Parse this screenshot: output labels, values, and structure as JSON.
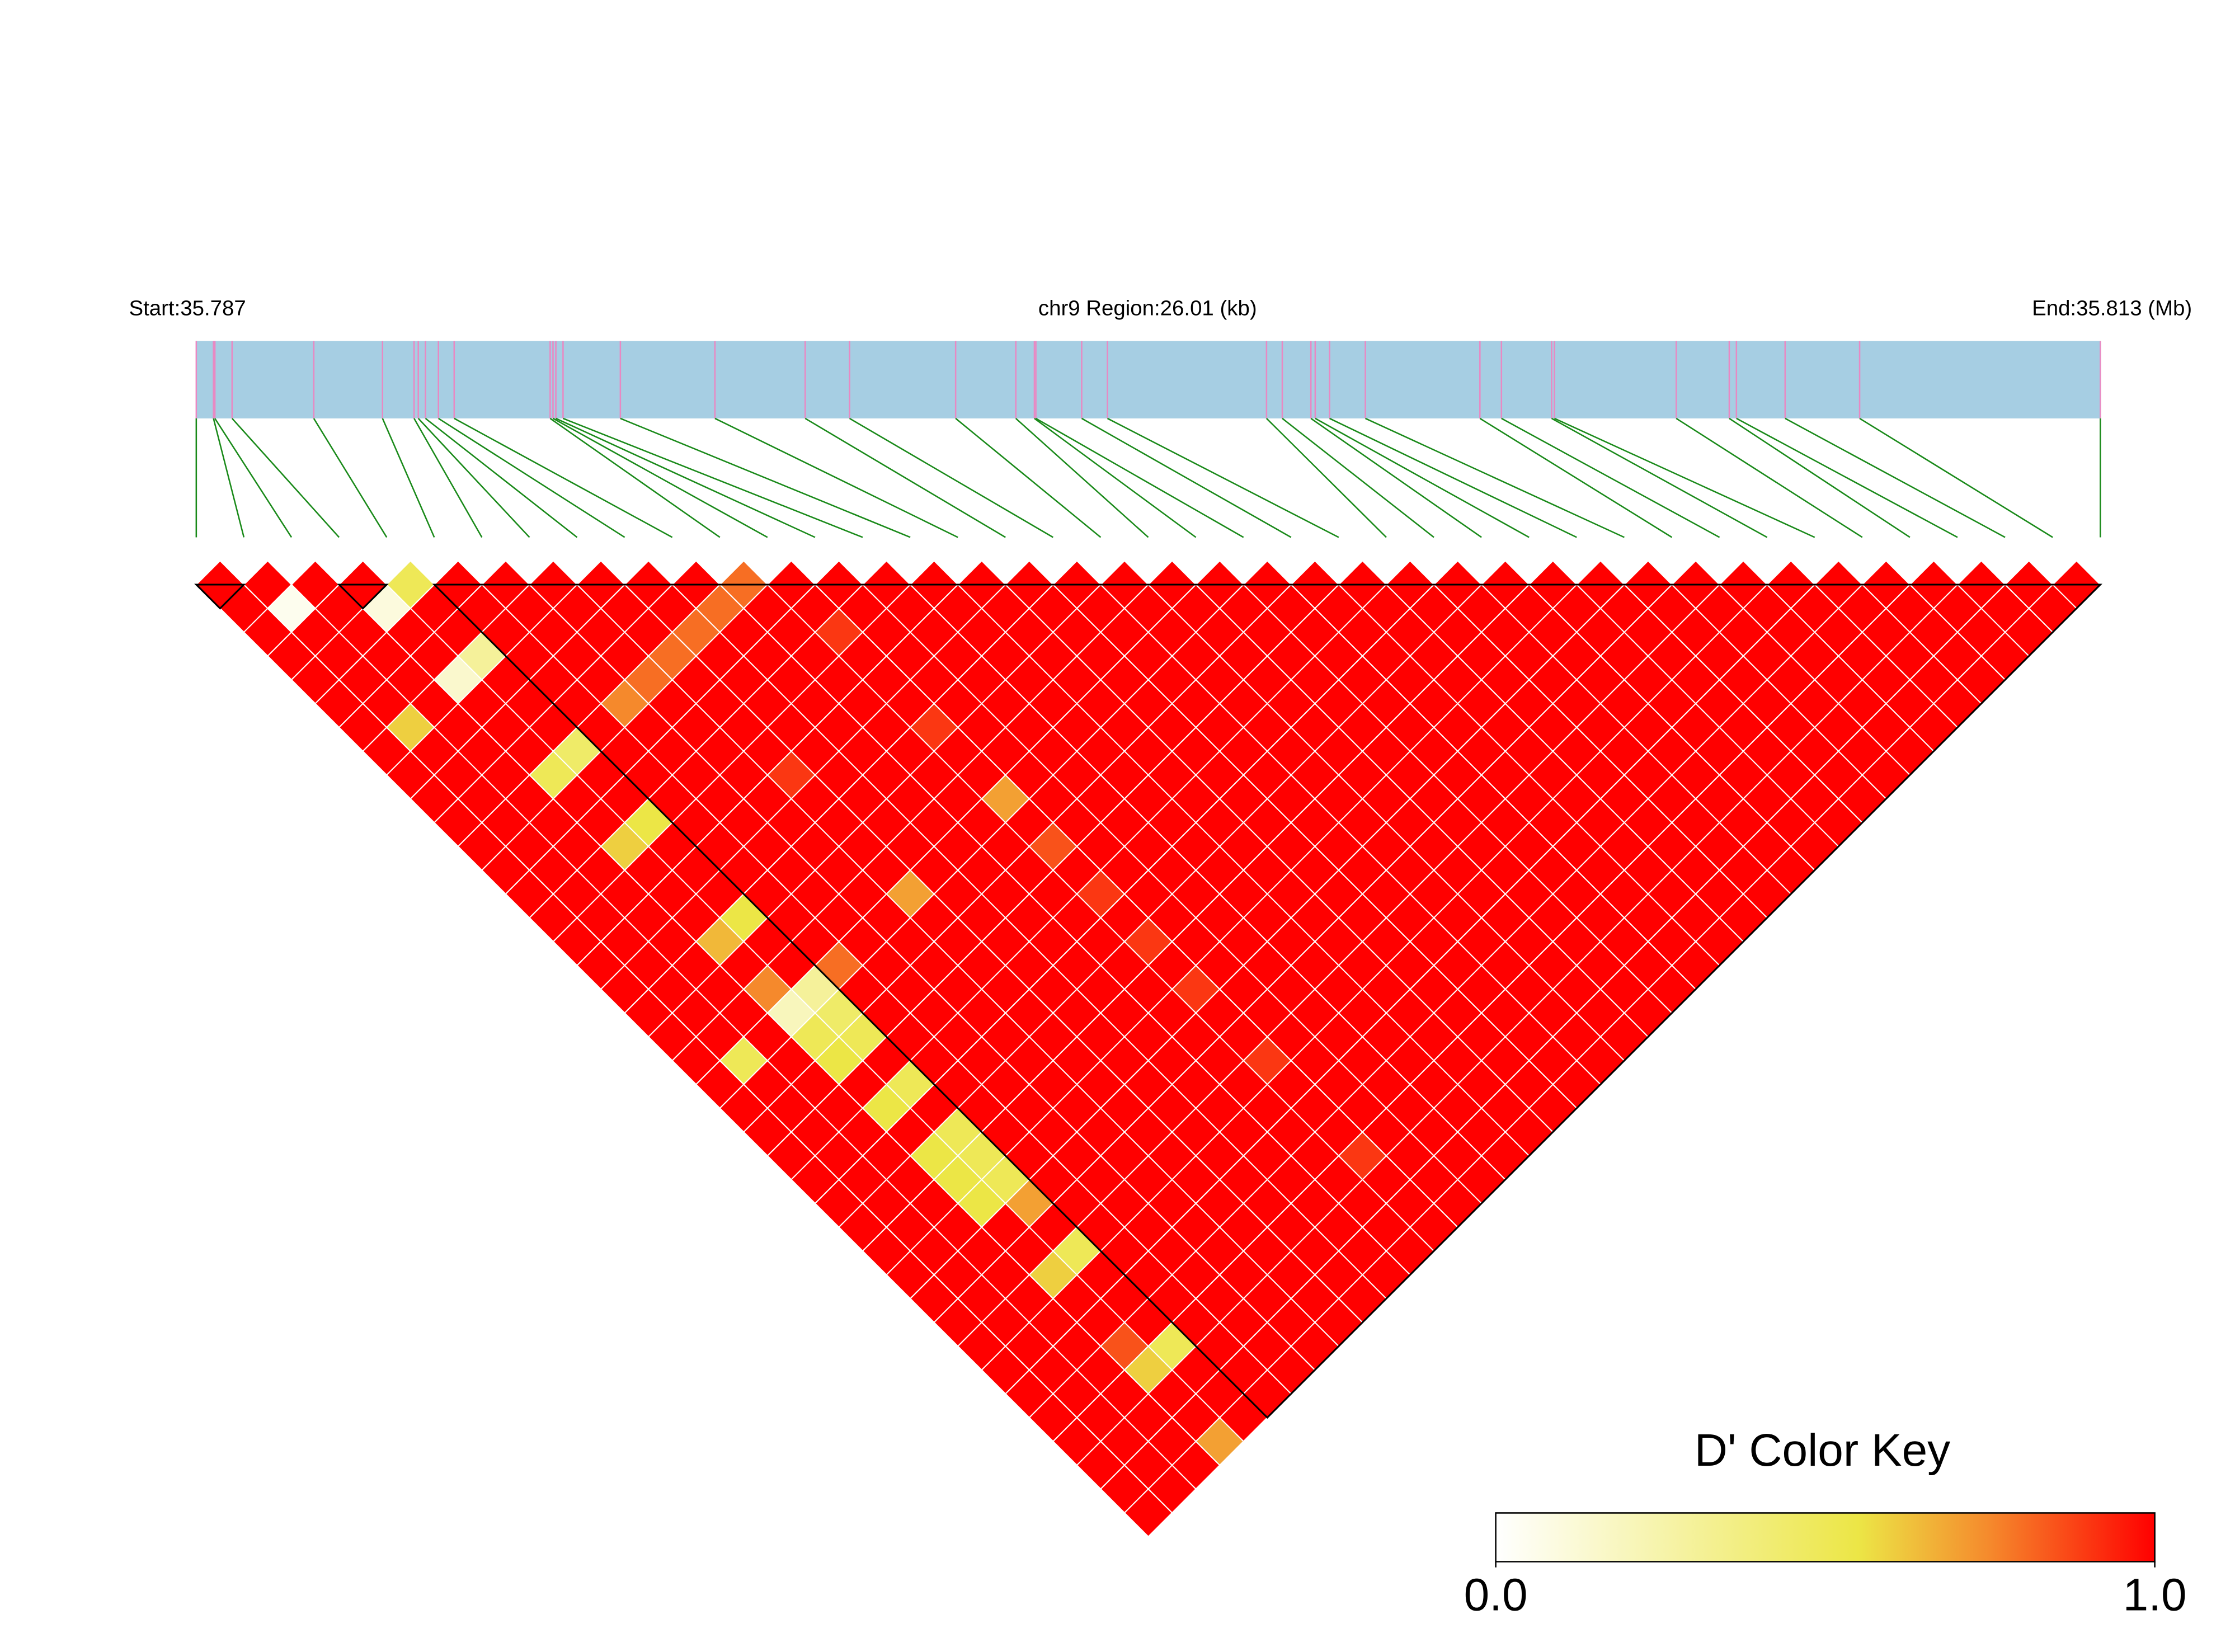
{
  "chart_data": {
    "type": "ld_heatmap",
    "start_label": "Start:35.787",
    "region_label": "chr9 Region:26.01 (kb)",
    "end_label": "End:35.813 (Mb)",
    "xlim": [
      0,
      26.01
    ],
    "snp_positions": [
      0,
      0.235,
      0.254,
      0.489,
      1.605,
      2.544,
      2.975,
      3.033,
      3.131,
      3.308,
      3.523,
      4.834,
      4.873,
      4.912,
      5.01,
      5.793,
      7.085,
      8.318,
      8.924,
      10.373,
      11.195,
      11.449,
      11.469,
      12.095,
      12.447,
      14.62,
      14.835,
      15.226,
      15.285,
      15.481,
      15.97,
      17.535,
      17.829,
      18.514,
      18.553,
      20.217,
      20.941,
      21.039,
      21.704,
      22.722,
      26.01
    ],
    "bar_color": "#a6cee3",
    "snp_line_color": "#e889c3",
    "connector_color": "#1a8a1a",
    "block_color": "#000000",
    "blocks": [
      [
        0,
        1
      ],
      [
        3,
        4
      ],
      [
        5,
        40
      ]
    ],
    "dprime": [
      [
        1,
        1,
        1,
        1,
        1,
        1,
        1,
        1,
        1,
        1,
        1,
        1,
        1,
        1,
        1,
        1,
        1,
        1,
        1,
        1,
        1,
        1,
        1,
        1,
        1,
        1,
        1,
        1,
        1,
        1,
        1,
        1,
        1,
        1,
        1,
        1,
        1,
        1,
        1,
        1
      ],
      [
        1,
        0.05,
        1,
        1,
        1,
        1,
        0.6,
        1,
        1,
        1,
        1,
        1,
        1,
        1,
        1,
        1,
        1,
        1,
        1,
        1,
        0.5,
        1,
        1,
        1,
        1,
        1,
        1,
        1,
        1,
        1,
        1,
        1,
        1,
        1,
        1,
        1,
        1,
        1,
        1
      ],
      [
        1,
        1,
        1,
        1,
        1,
        1,
        1,
        1,
        1,
        1,
        1,
        1,
        1,
        1,
        1,
        1,
        1,
        1,
        1,
        1,
        1,
        1,
        1,
        1,
        1,
        1,
        1,
        1,
        1,
        1,
        1,
        1,
        1,
        1,
        1,
        1,
        1,
        1
      ],
      [
        1,
        0.1,
        1,
        1,
        0.15,
        1,
        1,
        1,
        0.5,
        1,
        1,
        0.6,
        1,
        1,
        1,
        0.65,
        1,
        0.75,
        0.2,
        0.5,
        0.55,
        1,
        0.55,
        1,
        0.55,
        0.55,
        0.55,
        1,
        1,
        0.6,
        1,
        1,
        0.85,
        0.6,
        1,
        1,
        0.7
      ],
      [
        0.5,
        1,
        1,
        0.3,
        1,
        1,
        1,
        0.45,
        1,
        1,
        0.55,
        1,
        1,
        1,
        0.55,
        1,
        1,
        0.3,
        0.45,
        0.5,
        1,
        0.5,
        1,
        0.5,
        0.5,
        0.5,
        0.7,
        1,
        0.5,
        1,
        1,
        1,
        0.5,
        1,
        1,
        1
      ],
      [
        1,
        1,
        1,
        1,
        1,
        1,
        1,
        1,
        1,
        1,
        1,
        1,
        1,
        1,
        1,
        1,
        0.8,
        1,
        1,
        1,
        1,
        1,
        1,
        1,
        1,
        1,
        1,
        1,
        1,
        1,
        1,
        1,
        1,
        1,
        1
      ],
      [
        1,
        1,
        1,
        1,
        1,
        0.75,
        1,
        1,
        1,
        1,
        1,
        1,
        1,
        1,
        1,
        1,
        1,
        1,
        1,
        1,
        1,
        1,
        1,
        1,
        1,
        1,
        1,
        1,
        1,
        1,
        1,
        1,
        1,
        1
      ],
      [
        1,
        1,
        1,
        1,
        0.8,
        1,
        1,
        1,
        1,
        1,
        1,
        1,
        1,
        1,
        1,
        1,
        1,
        1,
        1,
        1,
        1,
        1,
        1,
        1,
        1,
        1,
        1,
        1,
        1,
        1,
        1,
        1,
        1
      ],
      [
        1,
        1,
        1,
        0.8,
        1,
        1,
        1,
        1,
        0.9,
        1,
        1,
        1,
        1,
        0.7,
        1,
        1,
        1,
        1,
        1,
        1,
        1,
        1,
        1,
        1,
        1,
        1,
        1,
        1,
        1,
        1,
        1,
        1
      ],
      [
        1,
        1,
        0.8,
        1,
        1,
        1,
        1,
        1,
        1,
        1,
        1,
        1,
        1,
        1,
        1,
        1,
        1,
        1,
        1,
        1,
        1,
        1,
        1,
        1,
        1,
        1,
        1,
        1,
        1,
        1,
        1
      ],
      [
        1,
        0.8,
        1,
        1,
        1,
        1,
        1,
        1,
        1,
        1,
        1,
        1,
        1,
        1,
        1,
        1,
        1,
        1,
        1,
        1,
        1,
        1,
        1,
        1,
        1,
        1,
        1,
        1,
        1,
        1
      ],
      [
        0.8,
        1,
        1,
        1,
        1,
        1,
        1,
        1,
        1,
        1,
        1,
        1,
        1,
        1,
        1,
        1,
        1,
        1,
        1,
        1,
        1,
        1,
        1,
        1,
        1,
        1,
        1,
        1,
        1
      ],
      [
        1,
        1,
        0.9,
        1,
        1,
        1,
        0.9,
        1,
        1,
        0.7,
        1,
        0.85,
        1,
        0.9,
        1,
        0.9,
        1,
        0.9,
        1,
        1,
        0.9,
        1,
        1,
        1,
        0.9,
        1,
        1,
        1
      ],
      [
        1,
        1,
        1,
        1,
        1,
        1,
        1,
        1,
        1,
        1,
        1,
        1,
        1,
        1,
        1,
        1,
        1,
        1,
        1,
        1,
        1,
        1,
        1,
        1,
        1,
        1,
        1
      ],
      [
        1,
        1,
        1,
        1,
        1,
        1,
        1,
        1,
        1,
        1,
        1,
        1,
        1,
        1,
        1,
        1,
        1,
        1,
        1,
        1,
        1,
        1,
        1,
        1,
        1,
        1
      ],
      [
        1,
        1,
        1,
        1,
        1,
        1,
        1,
        1,
        1,
        1,
        1,
        1,
        1,
        1,
        1,
        1,
        1,
        1,
        1,
        1,
        1,
        1,
        1,
        1,
        1
      ],
      [
        1,
        1,
        1,
        1,
        1,
        1,
        1,
        1,
        1,
        1,
        1,
        1,
        1,
        1,
        1,
        1,
        1,
        1,
        1,
        1,
        1,
        1,
        1,
        1
      ],
      [
        1,
        1,
        1,
        1,
        1,
        1,
        1,
        1,
        1,
        1,
        1,
        1,
        1,
        1,
        1,
        1,
        1,
        1,
        1,
        1,
        1,
        1,
        1
      ],
      [
        1,
        1,
        1,
        1,
        1,
        1,
        1,
        1,
        1,
        1,
        1,
        1,
        1,
        1,
        1,
        1,
        1,
        1,
        1,
        1,
        1,
        1
      ],
      [
        1,
        1,
        1,
        1,
        1,
        1,
        1,
        1,
        1,
        1,
        1,
        1,
        1,
        1,
        1,
        1,
        1,
        1,
        1,
        1,
        1
      ],
      [
        1,
        1,
        1,
        1,
        1,
        1,
        1,
        1,
        1,
        1,
        1,
        1,
        1,
        1,
        1,
        1,
        1,
        1,
        1,
        1
      ],
      [
        1,
        1,
        1,
        1,
        1,
        1,
        1,
        1,
        1,
        1,
        1,
        1,
        1,
        1,
        1,
        1,
        1,
        1,
        1
      ],
      [
        1,
        1,
        1,
        1,
        1,
        1,
        1,
        1,
        1,
        1,
        1,
        1,
        1,
        1,
        1,
        1,
        1,
        1
      ],
      [
        1,
        1,
        1,
        1,
        1,
        1,
        1,
        1,
        1,
        1,
        1,
        1,
        1,
        1,
        1,
        1,
        1
      ],
      [
        1,
        1,
        1,
        1,
        1,
        1,
        1,
        1,
        1,
        1,
        1,
        1,
        1,
        1,
        1,
        1
      ],
      [
        1,
        1,
        1,
        1,
        1,
        1,
        1,
        1,
        1,
        1,
        1,
        1,
        1,
        1,
        1
      ],
      [
        1,
        1,
        1,
        1,
        1,
        1,
        1,
        1,
        1,
        1,
        1,
        1,
        1,
        1
      ],
      [
        1,
        1,
        1,
        1,
        1,
        1,
        1,
        1,
        1,
        1,
        1,
        1,
        1
      ],
      [
        1,
        1,
        1,
        1,
        1,
        1,
        1,
        1,
        1,
        1,
        1,
        1
      ],
      [
        1,
        1,
        1,
        1,
        1,
        1,
        1,
        1,
        1,
        1,
        1
      ],
      [
        1,
        1,
        1,
        1,
        1,
        1,
        1,
        1,
        1,
        1
      ],
      [
        1,
        1,
        1,
        1,
        1,
        1,
        1,
        1,
        1
      ],
      [
        1,
        1,
        1,
        1,
        1,
        1,
        1,
        1
      ],
      [
        1,
        1,
        1,
        1,
        1,
        1,
        1
      ],
      [
        1,
        1,
        1,
        1,
        1,
        1
      ],
      [
        1,
        1,
        1,
        1,
        1
      ],
      [
        1,
        1,
        1,
        1
      ],
      [
        1,
        1,
        1
      ],
      [
        1,
        1
      ],
      [
        1
      ]
    ],
    "colorbar": {
      "title": "D' Color Key",
      "lim": [
        0,
        1
      ],
      "ticks": [
        {
          "value": 0,
          "label": "0.0"
        },
        {
          "value": 1,
          "label": "1.0"
        }
      ],
      "stops": [
        {
          "value": 0,
          "color": "#ffffff"
        },
        {
          "value": 0.55,
          "color": "#ece646"
        },
        {
          "value": 0.75,
          "color": "#f5892c"
        },
        {
          "value": 1,
          "color": "#ff0000"
        }
      ]
    }
  }
}
